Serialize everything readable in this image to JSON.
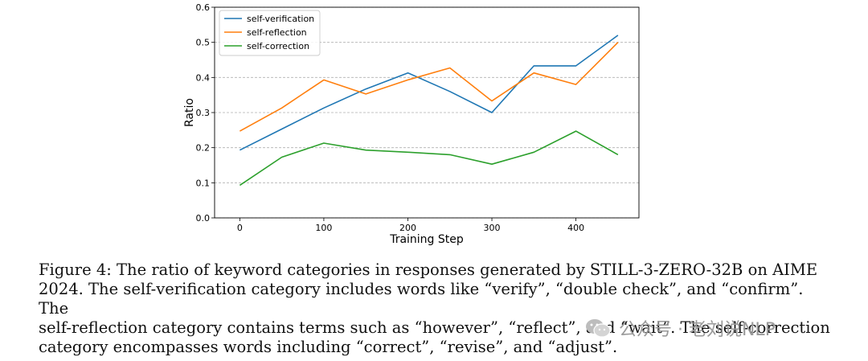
{
  "chart_data": {
    "type": "line",
    "title": "",
    "xlabel": "Training Step",
    "ylabel": "Ratio",
    "xlim": [
      -30,
      475
    ],
    "ylim": [
      0.0,
      0.6
    ],
    "x_ticks": [
      0,
      100,
      200,
      300,
      400
    ],
    "y_ticks": [
      0.0,
      0.1,
      0.2,
      0.3,
      0.4,
      0.5,
      0.6
    ],
    "x_tick_labels": [
      "0",
      "100",
      "200",
      "300",
      "400"
    ],
    "y_tick_labels": [
      "0.0",
      "0.1",
      "0.2",
      "0.3",
      "0.4",
      "0.5",
      "0.6"
    ],
    "grid": "horizontal dashed",
    "legend_position": "top-left",
    "x": [
      0,
      50,
      100,
      150,
      200,
      250,
      300,
      350,
      400,
      450
    ],
    "series": [
      {
        "name": "self-verification",
        "color": "#1f77b4",
        "values": [
          0.193,
          0.253,
          0.313,
          0.367,
          0.413,
          0.36,
          0.3,
          0.433,
          0.433,
          0.52
        ]
      },
      {
        "name": "self-reflection",
        "color": "#ff7f0e",
        "values": [
          0.247,
          0.313,
          0.393,
          0.353,
          0.393,
          0.427,
          0.333,
          0.413,
          0.38,
          0.5
        ]
      },
      {
        "name": "self-correction",
        "color": "#2ca02c",
        "values": [
          0.093,
          0.173,
          0.213,
          0.193,
          0.187,
          0.18,
          0.153,
          0.187,
          0.247,
          0.18
        ]
      }
    ]
  },
  "caption": {
    "lines": [
      "Figure 4: The ratio of keyword categories in responses generated by STILL-3-ZERO-32B on AIME",
      "2024. The self-verification category includes words like “verify”, “double check”, and “confirm”. The",
      "self-reflection category contains terms such as “however”, “reflect”, and “wait”. The self-correction",
      "category encompasses words including “correct”, “revise”, and “adjust”."
    ]
  },
  "watermark": {
    "icon": "wechat-icon",
    "text": "公众号 · 老刘说NLP"
  }
}
